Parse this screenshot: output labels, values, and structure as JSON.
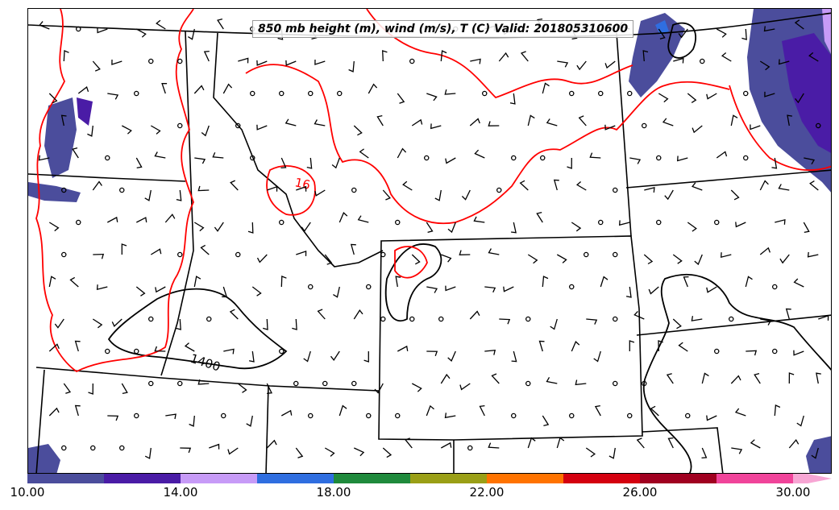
{
  "title": "850 mb height (m), wind (m/s), T (C) Valid: 201805310600",
  "colorbar": {
    "ticks": [
      "10.00",
      "14.00",
      "18.00",
      "22.00",
      "26.00",
      "30.00"
    ],
    "colors": [
      "#4b4d9c",
      "#4a1ca6",
      "#c79bf7",
      "#2f6ee0",
      "#1f8a3c",
      "#9a9f16",
      "#ff7300",
      "#d4000f",
      "#a00020",
      "#f0449a",
      "#f7a6d4"
    ]
  },
  "contour_labels": {
    "height": "1400",
    "temperature": "16"
  },
  "colors": {
    "height_contour": "#000000",
    "temperature_contour": "#ff0000",
    "borders": "#000000",
    "shade_dark": "#4b4d9c",
    "shade_purple": "#4a1ca6",
    "shade_light": "#c79bf7"
  }
}
